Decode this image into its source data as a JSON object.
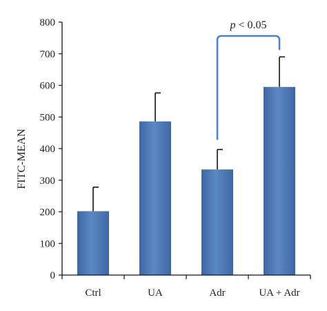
{
  "chart_data": {
    "type": "bar",
    "title": "",
    "xlabel": "",
    "ylabel": "FITC-MEAN",
    "ylim": [
      0,
      800
    ],
    "yticks": [
      0,
      100,
      200,
      300,
      400,
      500,
      600,
      700,
      800
    ],
    "categories": [
      "Ctrl",
      "UA",
      "Adr",
      "UA + Adr"
    ],
    "values": [
      202,
      486,
      334,
      595
    ],
    "error_upper": [
      76,
      90,
      63,
      95
    ],
    "grid": false,
    "bar_color": "#4f7ab8",
    "annotation_color": "#4b82c8",
    "annotation": {
      "text_italic": "p",
      "text_rest": " < 0.05",
      "between": [
        "Adr",
        "UA + Adr"
      ]
    }
  }
}
